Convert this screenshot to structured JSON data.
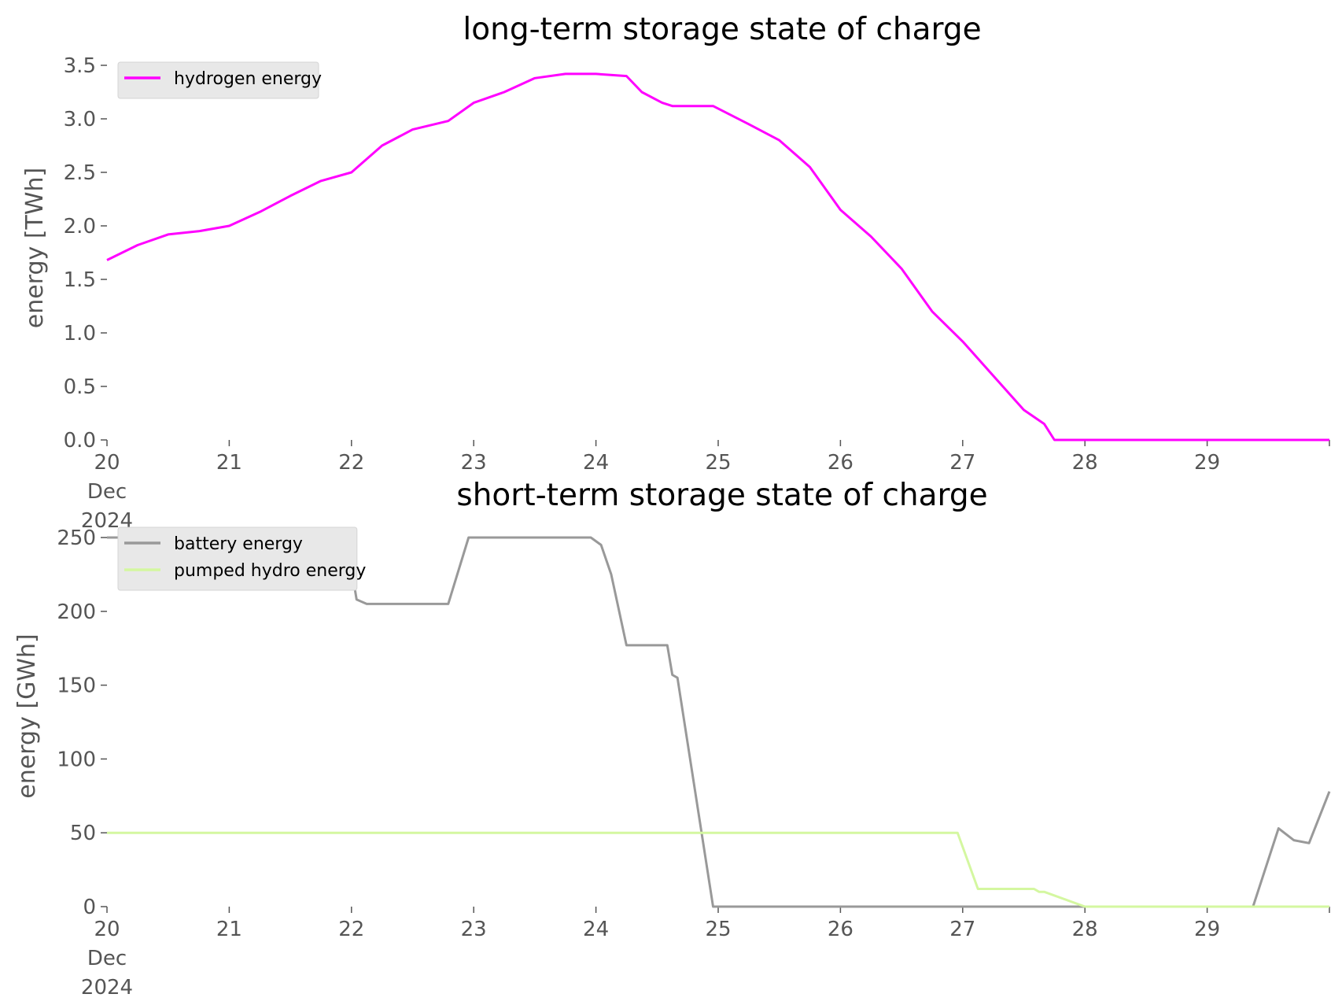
{
  "chart_data": [
    {
      "type": "line",
      "title": "long-term storage state of charge",
      "ylabel": "energy [TWh]",
      "xlabel": "",
      "ylim": [
        0,
        3.5
      ],
      "xlim": [
        "2024-12-20",
        "2024-12-30"
      ],
      "xticks": [
        "20\nDec\n2024",
        "21",
        "22",
        "23",
        "24",
        "25",
        "26",
        "27",
        "28",
        "29"
      ],
      "yticks": [
        "0.0",
        "0.5",
        "1.0",
        "1.5",
        "2.0",
        "2.5",
        "3.0",
        "3.5"
      ],
      "grid": false,
      "legend_position": "top-left",
      "series": [
        {
          "name": "hydrogen energy",
          "color": "#ff00ff",
          "x": [
            "2024-12-20 00:00",
            "2024-12-20 06:00",
            "2024-12-20 12:00",
            "2024-12-20 18:00",
            "2024-12-21 00:00",
            "2024-12-21 06:00",
            "2024-12-21 12:00",
            "2024-12-21 18:00",
            "2024-12-22 00:00",
            "2024-12-22 06:00",
            "2024-12-22 12:00",
            "2024-12-22 19:00",
            "2024-12-23 00:00",
            "2024-12-23 06:00",
            "2024-12-23 12:00",
            "2024-12-23 18:00",
            "2024-12-24 00:00",
            "2024-12-24 06:00",
            "2024-12-24 09:00",
            "2024-12-24 13:00",
            "2024-12-24 15:00",
            "2024-12-24 17:00",
            "2024-12-24 23:00",
            "2024-12-25 06:00",
            "2024-12-25 12:00",
            "2024-12-25 18:00",
            "2024-12-26 00:00",
            "2024-12-26 06:00",
            "2024-12-26 12:00",
            "2024-12-26 18:00",
            "2024-12-27 00:00",
            "2024-12-27 06:00",
            "2024-12-27 12:00",
            "2024-12-27 16:00",
            "2024-12-27 18:00",
            "2024-12-28 00:00",
            "2024-12-29 00:00",
            "2024-12-30 00:00"
          ],
          "y": [
            1.68,
            1.82,
            1.92,
            1.95,
            2.0,
            2.13,
            2.28,
            2.42,
            2.5,
            2.75,
            2.9,
            2.98,
            3.15,
            3.25,
            3.38,
            3.42,
            3.42,
            3.4,
            3.25,
            3.15,
            3.12,
            3.12,
            3.12,
            2.95,
            2.8,
            2.55,
            2.15,
            1.9,
            1.6,
            1.2,
            0.92,
            0.6,
            0.28,
            0.15,
            0.0,
            0.0,
            0.0,
            0.0
          ]
        }
      ]
    },
    {
      "type": "line",
      "title": "short-term storage state of charge",
      "ylabel": "energy [GWh]",
      "xlabel": "",
      "ylim": [
        0,
        250
      ],
      "xlim": [
        "2024-12-20",
        "2024-12-30"
      ],
      "xticks": [
        "20\nDec\n2024",
        "21",
        "22",
        "23",
        "24",
        "25",
        "26",
        "27",
        "28",
        "29"
      ],
      "yticks": [
        "0",
        "50",
        "100",
        "150",
        "200",
        "250"
      ],
      "grid": false,
      "legend_position": "top-left",
      "series": [
        {
          "name": "battery energy",
          "color": "#999999",
          "x": [
            "2024-12-20 00:00",
            "2024-12-21 23:00",
            "2024-12-22 01:00",
            "2024-12-22 03:00",
            "2024-12-22 19:00",
            "2024-12-22 23:00",
            "2024-12-23 23:00",
            "2024-12-24 01:00",
            "2024-12-24 03:00",
            "2024-12-24 06:00",
            "2024-12-24 14:00",
            "2024-12-24 15:00",
            "2024-12-24 16:00",
            "2024-12-24 23:00",
            "2024-12-25 23:00",
            "2024-12-26 23:00",
            "2024-12-27 23:00",
            "2024-12-28 23:00",
            "2024-12-29 09:00",
            "2024-12-29 14:00",
            "2024-12-29 17:00",
            "2024-12-29 20:00",
            "2024-12-30 00:00"
          ],
          "y": [
            250,
            250,
            208,
            205,
            205,
            250,
            250,
            245,
            225,
            177,
            177,
            157,
            155,
            0,
            0,
            0,
            0,
            0,
            0,
            53,
            45,
            43,
            78
          ]
        },
        {
          "name": "pumped hydro energy",
          "color": "#d4f7a0",
          "x": [
            "2024-12-20 00:00",
            "2024-12-26 23:00",
            "2024-12-27 03:00",
            "2024-12-27 14:00",
            "2024-12-27 15:00",
            "2024-12-27 16:00",
            "2024-12-28 00:00",
            "2024-12-30 00:00"
          ],
          "y": [
            50,
            50,
            12,
            12,
            10,
            10,
            0,
            0
          ]
        }
      ]
    }
  ]
}
